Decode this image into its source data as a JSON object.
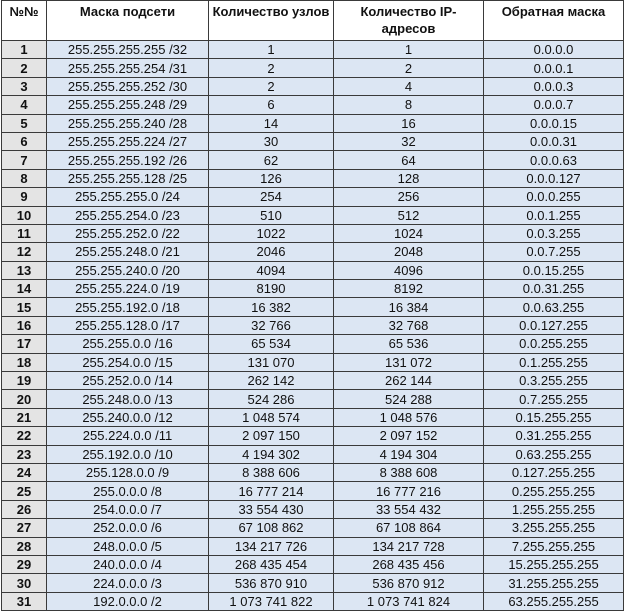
{
  "headers": [
    "№№",
    "Маска подсети",
    "Количество узлов",
    "Количество IP-адресов",
    "Обратная маска"
  ],
  "rows": [
    [
      "1",
      "255.255.255.255 /32",
      "1",
      "1",
      "0.0.0.0"
    ],
    [
      "2",
      "255.255.255.254 /31",
      "2",
      "2",
      "0.0.0.1"
    ],
    [
      "3",
      "255.255.255.252 /30",
      "2",
      "4",
      "0.0.0.3"
    ],
    [
      "4",
      "255.255.255.248 /29",
      "6",
      "8",
      "0.0.0.7"
    ],
    [
      "5",
      "255.255.255.240 /28",
      "14",
      "16",
      "0.0.0.15"
    ],
    [
      "6",
      "255.255.255.224 /27",
      "30",
      "32",
      "0.0.0.31"
    ],
    [
      "7",
      "255.255.255.192 /26",
      "62",
      "64",
      "0.0.0.63"
    ],
    [
      "8",
      "255.255.255.128 /25",
      "126",
      "128",
      "0.0.0.127"
    ],
    [
      "9",
      "255.255.255.0 /24",
      "254",
      "256",
      "0.0.0.255"
    ],
    [
      "10",
      "255.255.254.0 /23",
      "510",
      "512",
      "0.0.1.255"
    ],
    [
      "11",
      "255.255.252.0 /22",
      "1022",
      "1024",
      "0.0.3.255"
    ],
    [
      "12",
      "255.255.248.0 /21",
      "2046",
      "2048",
      "0.0.7.255"
    ],
    [
      "13",
      "255.255.240.0 /20",
      "4094",
      "4096",
      "0.0.15.255"
    ],
    [
      "14",
      "255.255.224.0 /19",
      "8190",
      "8192",
      "0.0.31.255"
    ],
    [
      "15",
      "255.255.192.0 /18",
      "16 382",
      "16 384",
      "0.0.63.255"
    ],
    [
      "16",
      "255.255.128.0 /17",
      "32 766",
      "32 768",
      "0.0.127.255"
    ],
    [
      "17",
      "255.255.0.0 /16",
      "65 534",
      "65 536",
      "0.0.255.255"
    ],
    [
      "18",
      "255.254.0.0 /15",
      "131 070",
      "131 072",
      "0.1.255.255"
    ],
    [
      "19",
      "255.252.0.0 /14",
      "262 142",
      "262 144",
      "0.3.255.255"
    ],
    [
      "20",
      "255.248.0.0 /13",
      "524 286",
      "524 288",
      "0.7.255.255"
    ],
    [
      "21",
      "255.240.0.0 /12",
      "1 048 574",
      "1 048 576",
      "0.15.255.255"
    ],
    [
      "22",
      "255.224.0.0 /11",
      "2 097 150",
      "2 097 152",
      "0.31.255.255"
    ],
    [
      "23",
      "255.192.0.0 /10",
      "4 194 302",
      "4 194 304",
      "0.63.255.255"
    ],
    [
      "24",
      "255.128.0.0 /9",
      "8 388 606",
      "8 388 608",
      "0.127.255.255"
    ],
    [
      "25",
      "255.0.0.0 /8",
      "16 777 214",
      "16 777 216",
      "0.255.255.255"
    ],
    [
      "26",
      "254.0.0.0 /7",
      "33 554 430",
      "33 554 432",
      "1.255.255.255"
    ],
    [
      "27",
      "252.0.0.0 /6",
      "67 108 862",
      "67 108 864",
      "3.255.255.255"
    ],
    [
      "28",
      "248.0.0.0 /5",
      "134 217 726",
      "134 217 728",
      "7.255.255.255"
    ],
    [
      "29",
      "240.0.0.0 /4",
      "268 435 454",
      "268 435 456",
      "15.255.255.255"
    ],
    [
      "30",
      "224.0.0.0 /3",
      "536 870 910",
      "536 870 912",
      "31.255.255.255"
    ],
    [
      "31",
      "192.0.0.0 /2",
      "1 073 741 822",
      "1 073 741 824",
      "63.255.255.255"
    ]
  ]
}
